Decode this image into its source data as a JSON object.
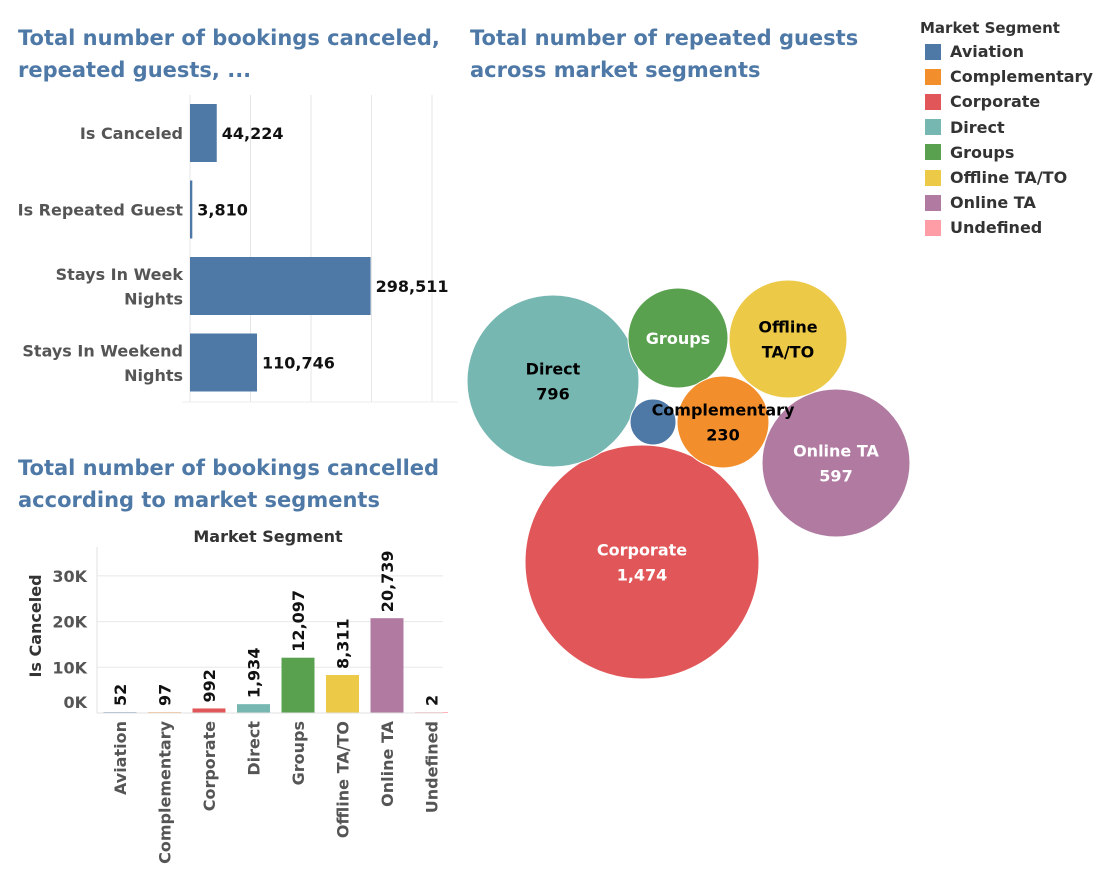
{
  "titles": {
    "top_left": "Total number of bookings canceled, repeated guests, ...",
    "top_right": "Total number of repeated guests across market segments",
    "bottom_left": "Total number of bookings cancelled according to market segments"
  },
  "legend": {
    "title": "Market Segment",
    "items": [
      {
        "label": "Aviation",
        "color": "#4e79a7"
      },
      {
        "label": "Complementary",
        "color": "#f28e2b"
      },
      {
        "label": "Corporate",
        "color": "#e15759"
      },
      {
        "label": "Direct",
        "color": "#76b7b2"
      },
      {
        "label": "Groups",
        "color": "#59a14f"
      },
      {
        "label": "Offline TA/TO",
        "color": "#edc948"
      },
      {
        "label": "Online TA",
        "color": "#b07aa1"
      },
      {
        "label": "Undefined",
        "color": "#ff9da7"
      }
    ]
  },
  "chart_data": [
    {
      "type": "bar",
      "orientation": "horizontal",
      "title": "Total number of bookings canceled, repeated guests, ...",
      "categories": [
        [
          "Is Canceled"
        ],
        [
          "Is Repeated Guest"
        ],
        [
          "Stays In Week",
          "Nights"
        ],
        [
          "Stays In Weekend",
          "Nights"
        ]
      ],
      "values": [
        44224,
        3810,
        298511,
        110746
      ],
      "value_labels": [
        "44,224",
        "3,810",
        "298,511",
        "110,746"
      ],
      "xlim": [
        0,
        400000
      ],
      "grid": true,
      "color": "#4e79a7"
    },
    {
      "type": "bubble",
      "title": "Total number of repeated guests across market segments",
      "points": [
        {
          "segment": "Corporate",
          "value": 1474,
          "label": "1,474",
          "color": "#e15759",
          "text_color": "#ffffff",
          "show_label": true
        },
        {
          "segment": "Direct",
          "value": 796,
          "label": "796",
          "color": "#76b7b2",
          "text_color": "#000000",
          "show_label": true
        },
        {
          "segment": "Online TA",
          "value": 597,
          "label": "597",
          "color": "#b07aa1",
          "text_color": "#ffffff",
          "show_label": true
        },
        {
          "segment": "Offline TA/TO",
          "value": 0,
          "label": "",
          "color": "#edc948",
          "text_color": "#000000",
          "show_label": true,
          "name_lines": [
            "Offline",
            "TA/TO"
          ]
        },
        {
          "segment": "Groups",
          "value": 0,
          "label": "",
          "color": "#59a14f",
          "text_color": "#ffffff",
          "show_label": true
        },
        {
          "segment": "Complementary",
          "value": 230,
          "label": "230",
          "color": "#f28e2b",
          "text_color": "#000000",
          "show_label": true
        },
        {
          "segment": "Aviation",
          "value": 0,
          "label": "",
          "color": "#4e79a7",
          "text_color": "#ffffff",
          "show_label": false
        }
      ]
    },
    {
      "type": "bar",
      "title": "Total number of bookings cancelled according to market segments",
      "header": "Market Segment",
      "ylabel": "Is Canceled",
      "categories": [
        "Aviation",
        "Complementary",
        "Corporate",
        "Direct",
        "Groups",
        "Offline TA/TO",
        "Online TA",
        "Undefined"
      ],
      "values": [
        52,
        97,
        992,
        1934,
        12097,
        8311,
        20739,
        2
      ],
      "value_labels": [
        "52",
        "97",
        "992",
        "1,934",
        "12,097",
        "8,311",
        "20,739",
        "2"
      ],
      "colors": [
        "#4e79a7",
        "#f28e2b",
        "#e15759",
        "#76b7b2",
        "#59a14f",
        "#edc948",
        "#b07aa1",
        "#ff9da7"
      ],
      "yticks": [
        "0K",
        "10K",
        "20K",
        "30K"
      ],
      "ylim": [
        0,
        35000
      ],
      "grid": true
    }
  ]
}
